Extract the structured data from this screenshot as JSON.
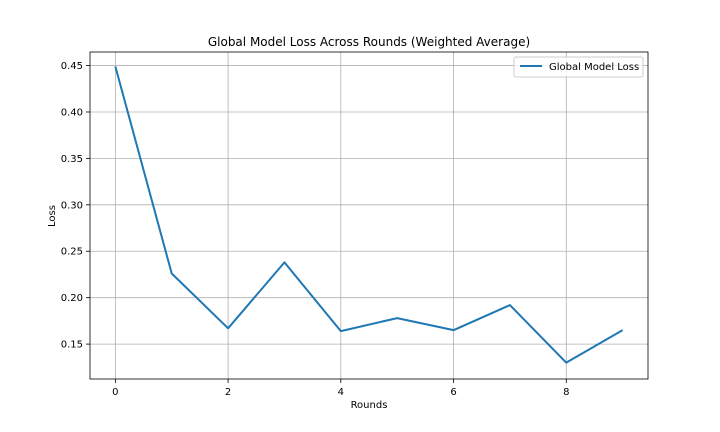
{
  "chart_data": {
    "type": "line",
    "title": "Global Model Loss Across Rounds (Weighted Average)",
    "xlabel": "Rounds",
    "ylabel": "Loss",
    "x": [
      0,
      1,
      2,
      3,
      4,
      5,
      6,
      7,
      8,
      9
    ],
    "series": [
      {
        "name": "Global Model Loss",
        "color": "#1f77b4",
        "values": [
          0.449,
          0.226,
          0.167,
          0.238,
          0.164,
          0.178,
          0.165,
          0.192,
          0.13,
          0.165
        ]
      }
    ],
    "xlim": [
      -0.45,
      9.45
    ],
    "ylim": [
      0.1124,
      0.4646
    ],
    "x_ticks": [
      0,
      2,
      4,
      6,
      8
    ],
    "x_tick_labels": [
      "0",
      "2",
      "4",
      "6",
      "8"
    ],
    "y_ticks": [
      0.15,
      0.2,
      0.25,
      0.3,
      0.35,
      0.4,
      0.45
    ],
    "y_tick_labels": [
      "0.15",
      "0.20",
      "0.25",
      "0.30",
      "0.35",
      "0.40",
      "0.45"
    ],
    "grid": true,
    "legend_position": "top-right"
  }
}
